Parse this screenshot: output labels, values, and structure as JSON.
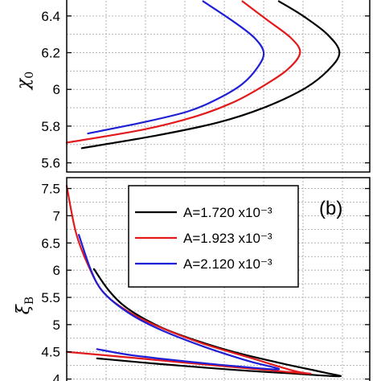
{
  "chart_data": [
    {
      "type": "line",
      "panel_label": "",
      "ylabel": "χ",
      "ylabel_subscript": "0",
      "ylim": [
        5.55,
        6.5
      ],
      "yticks": [
        5.6,
        5.8,
        6,
        6.2,
        6.4
      ],
      "ytick_labels": [
        "5.6",
        "5.8",
        "6",
        "6.2",
        "6.4"
      ],
      "grid": true,
      "series": [
        {
          "name": "A=1.720 x10⁻³",
          "color": "#000000",
          "points": [
            [
              0.05,
              5.68
            ],
            [
              0.3,
              5.75
            ],
            [
              0.5,
              5.82
            ],
            [
              0.65,
              5.9
            ],
            [
              0.78,
              6.0
            ],
            [
              0.86,
              6.1
            ],
            [
              0.9,
              6.2
            ],
            [
              0.86,
              6.3
            ],
            [
              0.78,
              6.4
            ],
            [
              0.7,
              6.48
            ]
          ]
        },
        {
          "name": "A=1.923 x10⁻³",
          "color": "#e31a1c",
          "points": [
            [
              0.0,
              5.71
            ],
            [
              0.25,
              5.78
            ],
            [
              0.42,
              5.85
            ],
            [
              0.55,
              5.93
            ],
            [
              0.65,
              6.02
            ],
            [
              0.73,
              6.11
            ],
            [
              0.77,
              6.2
            ],
            [
              0.74,
              6.28
            ],
            [
              0.66,
              6.38
            ],
            [
              0.58,
              6.48
            ]
          ]
        },
        {
          "name": "A=2.120 x10⁻³",
          "color": "#1f1fd6",
          "points": [
            [
              0.07,
              5.76
            ],
            [
              0.25,
              5.82
            ],
            [
              0.4,
              5.88
            ],
            [
              0.5,
              5.95
            ],
            [
              0.58,
              6.03
            ],
            [
              0.63,
              6.12
            ],
            [
              0.65,
              6.2
            ],
            [
              0.62,
              6.28
            ],
            [
              0.55,
              6.37
            ],
            [
              0.45,
              6.48
            ]
          ]
        }
      ]
    },
    {
      "type": "line",
      "panel_label": "(b)",
      "ylabel": "ξ",
      "ylabel_subscript": "B",
      "ylim": [
        3.92,
        7.7
      ],
      "yticks": [
        4,
        4.5,
        5,
        5.5,
        6,
        6.5,
        7,
        7.5
      ],
      "ytick_labels": [
        "4",
        "4.5",
        "5",
        "5.5",
        "6",
        "6.5",
        "7",
        "7.5"
      ],
      "grid": true,
      "legend_position": "top-right",
      "series": [
        {
          "name": "A=1.720 x10⁻³",
          "color": "#000000",
          "points": [
            [
              0.09,
              6.02
            ],
            [
              0.14,
              5.62
            ],
            [
              0.2,
              5.3
            ],
            [
              0.3,
              4.98
            ],
            [
              0.4,
              4.76
            ],
            [
              0.55,
              4.5
            ],
            [
              0.7,
              4.3
            ],
            [
              0.85,
              4.12
            ],
            [
              0.9,
              4.05
            ],
            [
              0.75,
              4.1
            ],
            [
              0.55,
              4.17
            ],
            [
              0.3,
              4.28
            ],
            [
              0.1,
              4.38
            ]
          ]
        },
        {
          "name": "A=1.923 x10⁻³",
          "color": "#e31a1c",
          "points": [
            [
              0.0,
              7.55
            ],
            [
              0.03,
              6.7
            ],
            [
              0.07,
              6.1
            ],
            [
              0.12,
              5.6
            ],
            [
              0.2,
              5.25
            ],
            [
              0.3,
              4.97
            ],
            [
              0.45,
              4.65
            ],
            [
              0.6,
              4.4
            ],
            [
              0.75,
              4.15
            ],
            [
              0.8,
              4.1
            ],
            [
              0.65,
              4.17
            ],
            [
              0.45,
              4.27
            ],
            [
              0.2,
              4.4
            ],
            [
              0.0,
              4.5
            ]
          ]
        },
        {
          "name": "A=2.120 x10⁻³",
          "color": "#1f1fd6",
          "points": [
            [
              0.04,
              6.65
            ],
            [
              0.08,
              6.0
            ],
            [
              0.12,
              5.6
            ],
            [
              0.2,
              5.23
            ],
            [
              0.3,
              4.93
            ],
            [
              0.45,
              4.6
            ],
            [
              0.6,
              4.33
            ],
            [
              0.7,
              4.18
            ],
            [
              0.55,
              4.24
            ],
            [
              0.35,
              4.35
            ],
            [
              0.2,
              4.45
            ],
            [
              0.1,
              4.55
            ]
          ]
        }
      ]
    }
  ]
}
